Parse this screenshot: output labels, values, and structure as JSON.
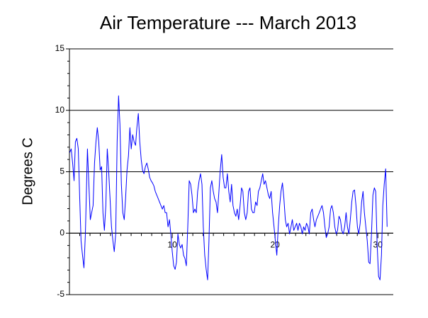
{
  "chart_data": {
    "type": "line",
    "title": "Air Temperature --- March 2013",
    "ylabel": "Degrees C",
    "x": [
      0.03,
      0.17,
      0.31,
      0.45,
      0.58,
      0.72,
      0.86,
      1.0,
      1.13,
      1.27,
      1.41,
      1.55,
      1.75,
      1.89,
      2.03,
      2.16,
      2.3,
      2.44,
      2.58,
      2.71,
      2.85,
      2.99,
      3.13,
      3.26,
      3.4,
      3.54,
      3.68,
      3.81,
      3.95,
      4.09,
      4.23,
      4.36,
      4.5,
      4.64,
      4.78,
      4.91,
      5.05,
      5.19,
      5.33,
      5.46,
      5.6,
      5.74,
      5.88,
      6.01,
      6.15,
      6.29,
      6.43,
      6.56,
      6.7,
      6.84,
      6.98,
      7.11,
      7.25,
      7.39,
      7.53,
      7.66,
      7.8,
      7.94,
      8.08,
      8.21,
      8.35,
      8.49,
      8.63,
      8.76,
      8.9,
      9.04,
      9.18,
      9.31,
      9.45,
      9.59,
      9.73,
      9.86,
      10.0,
      10.14,
      10.28,
      10.41,
      10.55,
      10.69,
      10.82,
      10.96,
      11.1,
      11.24,
      11.37,
      11.51,
      11.65,
      11.79,
      11.92,
      12.06,
      12.2,
      12.34,
      12.47,
      12.61,
      12.75,
      12.89,
      13.02,
      13.16,
      13.3,
      13.44,
      13.57,
      13.71,
      13.85,
      13.99,
      14.12,
      14.26,
      14.4,
      14.54,
      14.67,
      14.81,
      14.95,
      15.09,
      15.22,
      15.36,
      15.5,
      15.64,
      15.77,
      15.91,
      16.05,
      16.19,
      16.32,
      16.46,
      16.6,
      16.74,
      16.87,
      17.01,
      17.15,
      17.29,
      17.42,
      17.56,
      17.7,
      17.84,
      17.97,
      18.11,
      18.25,
      18.38,
      18.52,
      18.66,
      18.8,
      18.93,
      19.07,
      19.21,
      19.35,
      19.48,
      19.62,
      19.76,
      19.9,
      20.03,
      20.17,
      20.31,
      20.45,
      20.58,
      20.72,
      20.86,
      21.0,
      21.13,
      21.27,
      21.41,
      21.55,
      21.68,
      21.82,
      21.96,
      22.1,
      22.23,
      22.37,
      22.51,
      22.65,
      22.78,
      22.92,
      23.06,
      23.2,
      23.33,
      23.47,
      23.61,
      23.75,
      23.88,
      24.02,
      24.16,
      24.3,
      24.43,
      24.57,
      24.71,
      24.85,
      24.98,
      25.12,
      25.26,
      25.4,
      25.53,
      25.67,
      25.81,
      25.95,
      26.08,
      26.22,
      26.36,
      26.49,
      26.63,
      26.77,
      26.91,
      27.04,
      27.18,
      27.32,
      27.46,
      27.59,
      27.73,
      27.87,
      28.01,
      28.14,
      28.28,
      28.42,
      28.56,
      28.69,
      28.83,
      28.97,
      29.11,
      29.24,
      29.38,
      29.52,
      29.66,
      29.79,
      29.93,
      30.07,
      30.21,
      30.35,
      30.48,
      30.62,
      30.76,
      30.9
    ],
    "series": [
      {
        "color": "#0000ff",
        "values": [
          6.57,
          6.86,
          5.71,
          4.27,
          7.44,
          7.72,
          6.86,
          2.82,
          -0.63,
          -1.79,
          -2.82,
          -0.06,
          6.86,
          3.98,
          1.1,
          1.67,
          2.25,
          5.71,
          7.44,
          8.59,
          7.44,
          5.13,
          5.42,
          1.67,
          0.23,
          2.25,
          6.86,
          5.13,
          2.82,
          0.52,
          -0.63,
          -1.5,
          -0.06,
          7.44,
          11.18,
          8.88,
          3.98,
          1.67,
          1.1,
          2.82,
          5.13,
          6.28,
          8.59,
          6.86,
          8.01,
          7.44,
          7.15,
          8.59,
          9.74,
          7.44,
          5.99,
          5.13,
          4.84,
          5.42,
          5.71,
          5.24,
          4.55,
          4.27,
          4.09,
          3.86,
          3.4,
          3.11,
          2.82,
          2.54,
          2.25,
          1.96,
          2.25,
          1.67,
          1.67,
          0.52,
          1.1,
          -0.06,
          -1.5,
          -2.65,
          -2.94,
          -2.36,
          -0.06,
          -0.92,
          -1.21,
          -0.92,
          -1.79,
          -2.07,
          -2.65,
          0.52,
          4.27,
          3.98,
          3.11,
          1.67,
          1.96,
          1.67,
          3.4,
          4.27,
          4.84,
          3.98,
          0.52,
          -1.79,
          -2.94,
          -3.8,
          -0.63,
          3.69,
          4.27,
          3.4,
          2.82,
          2.54,
          1.67,
          3.4,
          5.13,
          6.4,
          4.55,
          3.69,
          3.69,
          4.84,
          3.4,
          2.54,
          3.98,
          2.25,
          1.67,
          1.38,
          1.96,
          1.1,
          2.25,
          3.69,
          3.4,
          1.67,
          1.1,
          1.67,
          3.4,
          3.69,
          1.96,
          1.67,
          1.67,
          2.54,
          2.25,
          3.4,
          3.69,
          4.27,
          4.84,
          3.98,
          4.27,
          3.69,
          3.11,
          2.82,
          3.4,
          1.67,
          0.52,
          -0.63,
          -1.79,
          0.52,
          2.25,
          3.4,
          4.09,
          2.82,
          1.1,
          0.52,
          0.81,
          -0.06,
          0.52,
          1.1,
          0.23,
          0.52,
          0.81,
          0.23,
          0.81,
          0.52,
          -0.06,
          0.52,
          0.23,
          0.81,
          0.52,
          -0.06,
          1.67,
          1.96,
          1.1,
          0.52,
          1.1,
          1.38,
          1.67,
          1.96,
          2.25,
          1.67,
          0.52,
          -0.35,
          -0.06,
          0.52,
          1.96,
          2.25,
          1.67,
          0.52,
          -0.06,
          0.23,
          1.38,
          1.1,
          0.23,
          -0.06,
          0.52,
          1.67,
          0.52,
          -0.06,
          1.1,
          2.54,
          3.4,
          3.52,
          2.25,
          0.52,
          -0.06,
          0.81,
          2.54,
          3.4,
          1.67,
          0.52,
          -0.63,
          -2.36,
          -2.48,
          -0.06,
          3.11,
          3.69,
          3.4,
          -0.92,
          -3.52,
          -3.8,
          -1.79,
          2.25,
          3.98,
          5.24,
          0.52
        ]
      }
    ],
    "xlim": [
      0,
      31.5
    ],
    "xticks": [
      10,
      20,
      30
    ],
    "xminor_ticks": [
      1,
      2,
      3,
      4,
      5,
      6,
      7,
      8,
      9,
      11,
      12,
      13,
      14,
      15,
      16,
      17,
      18,
      19,
      21,
      22,
      23,
      24,
      25,
      26,
      27,
      28,
      29,
      31
    ],
    "ylim": [
      -5,
      15
    ],
    "yticks": [
      -5,
      0,
      5,
      10,
      15
    ],
    "yminor_ticks": [
      -4,
      -3,
      -2,
      -1,
      1,
      2,
      3,
      4,
      6,
      7,
      8,
      9,
      11,
      12,
      13,
      14
    ],
    "grid": true
  }
}
